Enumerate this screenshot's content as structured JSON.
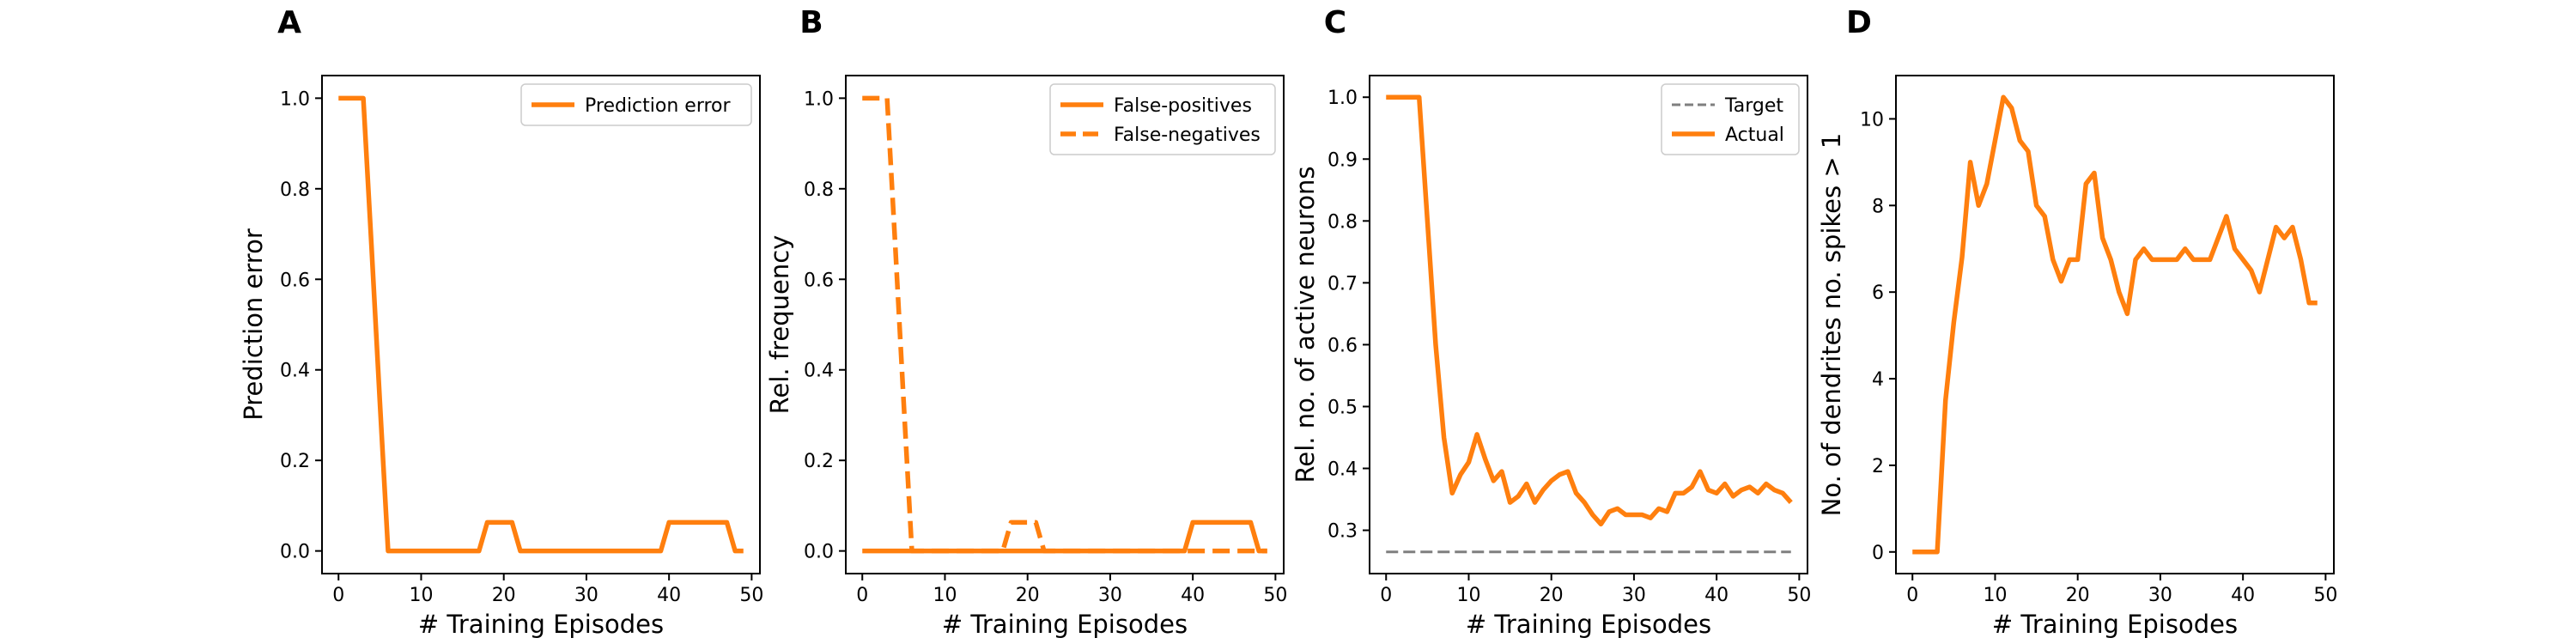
{
  "colors": {
    "orange": "#ff7f0e",
    "gray": "#7f7f7f"
  },
  "chart_data": [
    {
      "type": "line",
      "panel": "A",
      "xlabel": "# Training Episodes",
      "ylabel": "Prediction error",
      "xlim": [
        -2,
        51
      ],
      "ylim": [
        -0.05,
        1.05
      ],
      "xticks": [
        0,
        10,
        20,
        30,
        40,
        50
      ],
      "yticks": [
        0.0,
        0.2,
        0.4,
        0.6,
        0.8,
        1.0
      ],
      "legend_position": "top-right",
      "series": [
        {
          "name": "Prediction error",
          "style": "solid",
          "color": "#ff7f0e",
          "x": [
            0,
            1,
            2,
            3,
            4,
            5,
            6,
            7,
            8,
            9,
            10,
            11,
            12,
            13,
            14,
            15,
            16,
            17,
            18,
            19,
            20,
            21,
            22,
            23,
            24,
            25,
            26,
            27,
            28,
            29,
            30,
            31,
            32,
            33,
            34,
            35,
            36,
            37,
            38,
            39,
            40,
            41,
            42,
            43,
            44,
            45,
            46,
            47,
            48,
            49
          ],
          "y": [
            1,
            1,
            1,
            1,
            0.67,
            0.33,
            0,
            0,
            0,
            0,
            0,
            0,
            0,
            0,
            0,
            0,
            0,
            0,
            0.063,
            0.063,
            0.063,
            0.063,
            0,
            0,
            0,
            0,
            0,
            0,
            0,
            0,
            0,
            0,
            0,
            0,
            0,
            0,
            0,
            0,
            0,
            0,
            0.063,
            0.063,
            0.063,
            0.063,
            0.063,
            0.063,
            0.063,
            0.063,
            0,
            0
          ]
        }
      ]
    },
    {
      "type": "line",
      "panel": "B",
      "xlabel": "# Training Episodes",
      "ylabel": "Rel. frequency",
      "xlim": [
        -2,
        51
      ],
      "ylim": [
        -0.05,
        1.05
      ],
      "xticks": [
        0,
        10,
        20,
        30,
        40,
        50
      ],
      "yticks": [
        0.0,
        0.2,
        0.4,
        0.6,
        0.8,
        1.0
      ],
      "legend_position": "top-right",
      "series": [
        {
          "name": "False-positives",
          "style": "solid",
          "color": "#ff7f0e",
          "x": [
            0,
            1,
            2,
            3,
            4,
            5,
            6,
            7,
            8,
            9,
            10,
            11,
            12,
            13,
            14,
            15,
            16,
            17,
            18,
            19,
            20,
            21,
            22,
            23,
            24,
            25,
            26,
            27,
            28,
            29,
            30,
            31,
            32,
            33,
            34,
            35,
            36,
            37,
            38,
            39,
            40,
            41,
            42,
            43,
            44,
            45,
            46,
            47,
            48,
            49
          ],
          "y": [
            0,
            0,
            0,
            0,
            0,
            0,
            0,
            0,
            0,
            0,
            0,
            0,
            0,
            0,
            0,
            0,
            0,
            0,
            0,
            0,
            0,
            0,
            0,
            0,
            0,
            0,
            0,
            0,
            0,
            0,
            0,
            0,
            0,
            0,
            0,
            0,
            0,
            0,
            0,
            0,
            0.063,
            0.063,
            0.063,
            0.063,
            0.063,
            0.063,
            0.063,
            0.063,
            0,
            0
          ]
        },
        {
          "name": "False-negatives",
          "style": "dashed",
          "color": "#ff7f0e",
          "x": [
            0,
            1,
            2,
            3,
            4,
            5,
            6,
            7,
            8,
            9,
            10,
            11,
            12,
            13,
            14,
            15,
            16,
            17,
            18,
            19,
            20,
            21,
            22,
            23,
            24,
            25,
            26,
            27,
            28,
            29,
            30,
            31,
            32,
            33,
            34,
            35,
            36,
            37,
            38,
            39,
            40,
            41,
            42,
            43,
            44,
            45,
            46,
            47,
            48,
            49
          ],
          "y": [
            1,
            1,
            1,
            1,
            0.67,
            0.33,
            0,
            0,
            0,
            0,
            0,
            0,
            0,
            0,
            0,
            0,
            0,
            0,
            0.063,
            0.063,
            0.063,
            0.063,
            0,
            0,
            0,
            0,
            0,
            0,
            0,
            0,
            0,
            0,
            0,
            0,
            0,
            0,
            0,
            0,
            0,
            0,
            0,
            0,
            0,
            0,
            0,
            0,
            0,
            0,
            0,
            0
          ]
        }
      ]
    },
    {
      "type": "line",
      "panel": "C",
      "xlabel": "# Training Episodes",
      "ylabel": "Rel. no. of active neurons",
      "xlim": [
        -2,
        51
      ],
      "ylim": [
        0.23,
        1.035
      ],
      "xticks": [
        0,
        10,
        20,
        30,
        40,
        50
      ],
      "yticks": [
        0.3,
        0.4,
        0.5,
        0.6,
        0.7,
        0.8,
        0.9,
        1.0
      ],
      "legend_position": "top-right",
      "series": [
        {
          "name": "Target",
          "style": "dashed",
          "color": "#7f7f7f",
          "x": [
            0,
            49
          ],
          "y": [
            0.265,
            0.265
          ]
        },
        {
          "name": "Actual",
          "style": "solid",
          "color": "#ff7f0e",
          "x": [
            0,
            1,
            2,
            3,
            4,
            5,
            6,
            7,
            8,
            9,
            10,
            11,
            12,
            13,
            14,
            15,
            16,
            17,
            18,
            19,
            20,
            21,
            22,
            23,
            24,
            25,
            26,
            27,
            28,
            29,
            30,
            31,
            32,
            33,
            34,
            35,
            36,
            37,
            38,
            39,
            40,
            41,
            42,
            43,
            44,
            45,
            46,
            47,
            48,
            49
          ],
          "y": [
            1,
            1,
            1,
            1,
            1,
            0.8,
            0.6,
            0.45,
            0.36,
            0.39,
            0.41,
            0.455,
            0.415,
            0.38,
            0.395,
            0.345,
            0.355,
            0.375,
            0.345,
            0.365,
            0.38,
            0.39,
            0.395,
            0.36,
            0.345,
            0.325,
            0.31,
            0.33,
            0.335,
            0.325,
            0.325,
            0.325,
            0.32,
            0.335,
            0.33,
            0.36,
            0.36,
            0.37,
            0.395,
            0.365,
            0.36,
            0.375,
            0.355,
            0.365,
            0.37,
            0.36,
            0.375,
            0.365,
            0.36,
            0.345
          ]
        }
      ]
    },
    {
      "type": "line",
      "panel": "D",
      "xlabel": "# Training Episodes",
      "ylabel": "No. of dendrites no. spikes > 1",
      "xlim": [
        -2,
        51
      ],
      "ylim": [
        -0.5,
        11.0
      ],
      "xticks": [
        0,
        10,
        20,
        30,
        40,
        50
      ],
      "yticks": [
        0,
        2,
        4,
        6,
        8,
        10
      ],
      "legend_position": "none",
      "series": [
        {
          "name": "",
          "style": "solid",
          "color": "#ff7f0e",
          "x": [
            0,
            1,
            2,
            3,
            4,
            5,
            6,
            7,
            8,
            9,
            10,
            11,
            12,
            13,
            14,
            15,
            16,
            17,
            18,
            19,
            20,
            21,
            22,
            23,
            24,
            25,
            26,
            27,
            28,
            29,
            30,
            31,
            32,
            33,
            34,
            35,
            36,
            37,
            38,
            39,
            40,
            41,
            42,
            43,
            44,
            45,
            46,
            47,
            48,
            49
          ],
          "y": [
            0,
            0,
            0,
            0,
            3.5,
            5.3,
            6.8,
            9,
            8,
            8.5,
            9.5,
            10.5,
            10.25,
            9.5,
            9.25,
            8,
            7.75,
            6.75,
            6.25,
            6.75,
            6.75,
            8.5,
            8.75,
            7.25,
            6.75,
            6,
            5.5,
            6.75,
            7,
            6.75,
            6.75,
            6.75,
            6.75,
            7,
            6.75,
            6.75,
            6.75,
            7.25,
            7.75,
            7,
            6.75,
            6.5,
            6,
            6.75,
            7.5,
            7.25,
            7.5,
            6.75,
            5.75,
            5.75
          ]
        }
      ]
    }
  ]
}
